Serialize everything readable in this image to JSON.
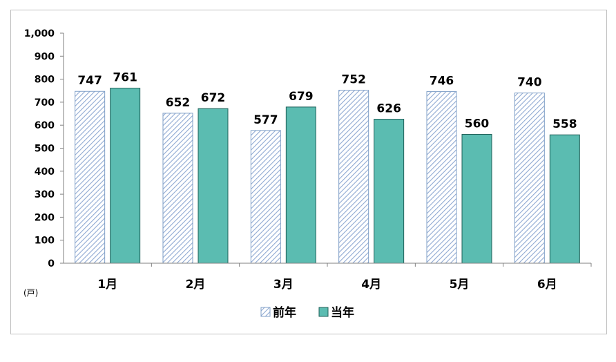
{
  "chart_data": {
    "type": "bar",
    "categories": [
      "1月",
      "2月",
      "3月",
      "4月",
      "5月",
      "6月"
    ],
    "series": [
      {
        "name": "前年",
        "values": [
          747,
          652,
          577,
          752,
          746,
          740
        ],
        "color": "#dce6f1",
        "pattern": "diagonal-hatch",
        "stroke": "#7f9fc7"
      },
      {
        "name": "当年",
        "values": [
          761,
          672,
          679,
          626,
          560,
          558
        ],
        "color": "#5bbcb1",
        "stroke": "#1f5f58"
      }
    ],
    "y_ticks": [
      "0",
      "100",
      "200",
      "300",
      "400",
      "500",
      "600",
      "700",
      "800",
      "900",
      "1,000"
    ],
    "ylim": [
      0,
      1000
    ],
    "y_unit": "(戸)",
    "grid": false,
    "legend_position": "bottom"
  }
}
